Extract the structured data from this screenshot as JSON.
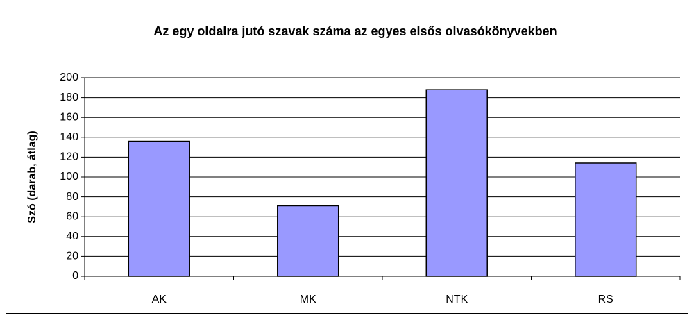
{
  "chart_data": {
    "type": "bar",
    "title": "Az egy oldalra jutó szavak száma az egyes elsős olvasókönyvekben",
    "y_label": "Szó (darab, átlag)",
    "categories": [
      "AK",
      "MK",
      "NTK",
      "RS"
    ],
    "values": [
      136,
      71,
      188,
      114
    ],
    "color": "#9999ff",
    "ylim": [
      0,
      200
    ],
    "yticks": [
      0,
      20,
      40,
      60,
      80,
      100,
      120,
      140,
      160,
      180,
      200
    ],
    "grid": true
  }
}
